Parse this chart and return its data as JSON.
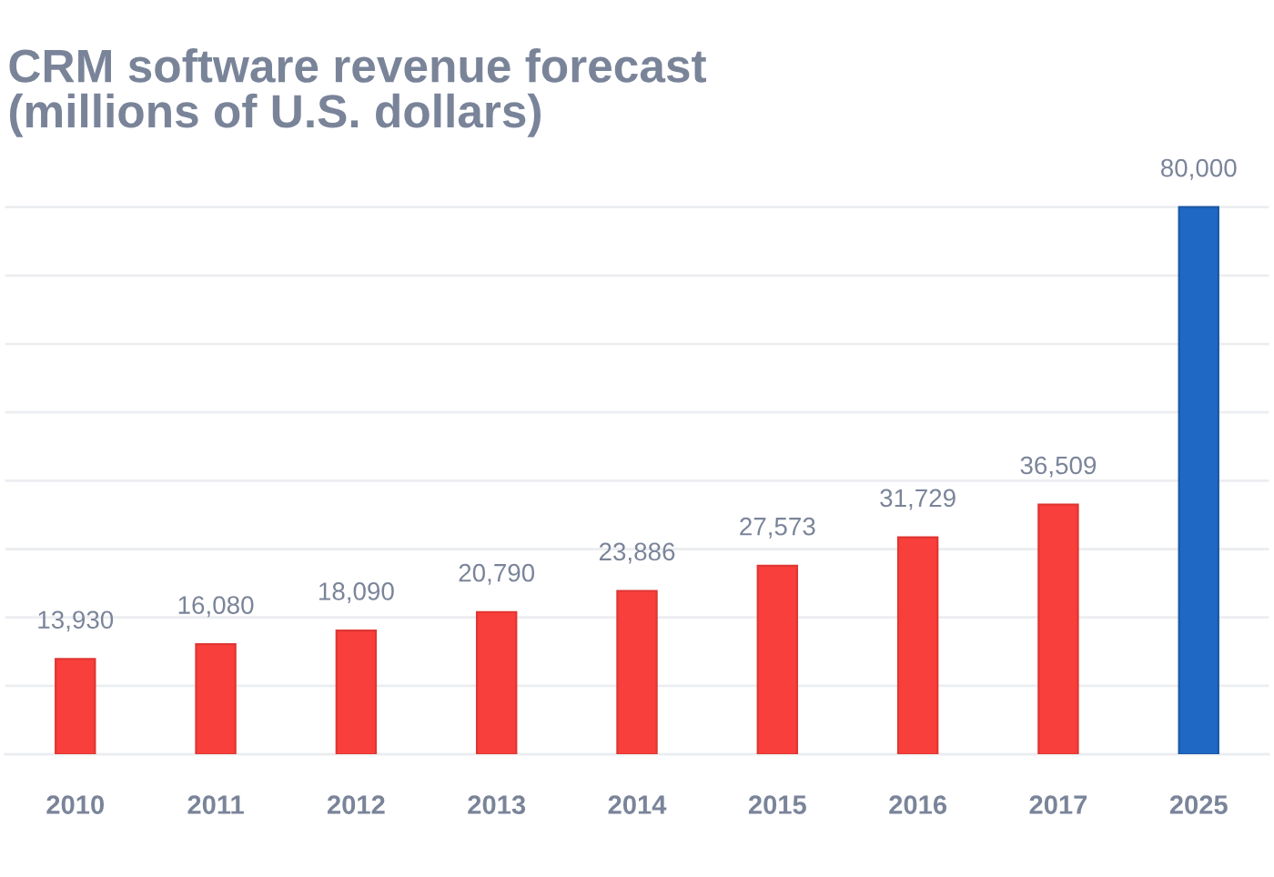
{
  "chart_data": {
    "type": "bar",
    "title": "CRM software revenue forecast\n(millions of U.S. dollars)",
    "categories": [
      "2010",
      "2011",
      "2012",
      "2013",
      "2014",
      "2015",
      "2016",
      "2017",
      "2025"
    ],
    "values": [
      13930,
      16080,
      18090,
      20790,
      23886,
      27573,
      31729,
      36509,
      80000
    ],
    "value_labels": [
      "13,930",
      "16,080",
      "18,090",
      "20,790",
      "23,886",
      "27,573",
      "31,729",
      "36,509",
      "80,000"
    ],
    "colors": [
      "#f93f3b",
      "#f93f3b",
      "#f93f3b",
      "#f93f3b",
      "#f93f3b",
      "#f93f3b",
      "#f93f3b",
      "#f93f3b",
      "#1f68c3"
    ],
    "grid": "y",
    "tick_labels": "x"
  }
}
